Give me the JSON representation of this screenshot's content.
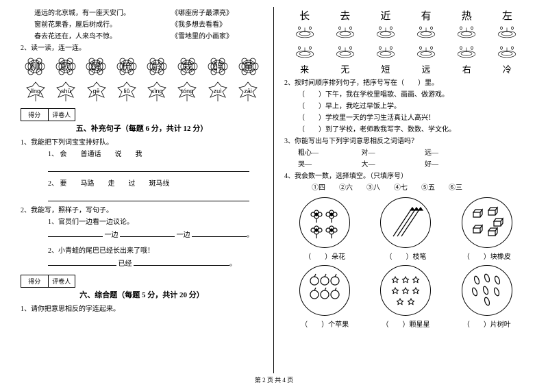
{
  "left": {
    "pairs": [
      {
        "l": "遥远的北京城，有一座天安门。",
        "r": "《哪座房子最漂亮》"
      },
      {
        "l": "窗前花果香，屋后树成行。",
        "r": "《我多想去看看》"
      },
      {
        "l": "春去花还在，人来鸟不惊。",
        "r": "《雪地里的小画家》"
      }
    ],
    "q2_label": "2、读一读，连一连。",
    "flowers": [
      "柳",
      "歌",
      "醒",
      "梳",
      "龄",
      "栽",
      "醉",
      "童"
    ],
    "leaves": [
      "lǐng",
      "shū",
      "gē",
      "liǔ",
      "xǐng",
      "tóng",
      "zuì",
      "zāi"
    ],
    "score": {
      "left": "得分",
      "right": "评卷人"
    },
    "section5": "五、补充句子（每题 6 分，共计 12 分）",
    "q5_1": "1、我能把下列词宝宝排好队。",
    "q5_1_1_words": [
      "会",
      "普通话",
      "说",
      "我"
    ],
    "q5_1_1_num": "1、",
    "q5_1_2_words": [
      "要",
      "马路",
      "走",
      "过",
      "斑马线"
    ],
    "q5_1_2_num": "2、",
    "q5_2": "2、我能写，照样子，写句子。",
    "q5_2_1": "1、官员们一边看一边议论。",
    "q5_2_1_fill_a": "一边",
    "q5_2_1_fill_b": "一边",
    "q5_2_2": "2、小青蛙的尾巴已经长出来了哦！",
    "q5_2_2_fill": "已经",
    "section6": "六、综合题（每题 5 分，共计 20 分）",
    "q6_1": "1、请你把意思相反的字连起来。"
  },
  "right": {
    "dish_top": [
      "长",
      "去",
      "近",
      "有",
      "热",
      "左"
    ],
    "dish_bot": [
      "来",
      "无",
      "短",
      "远",
      "右",
      "冷"
    ],
    "q2": "2、按时间顺序排列句子，把序号写在（　　）里。",
    "q2_lines": [
      "（　　）下午，我在学校里唱歌、画画、做游戏。",
      "（　　）早上，我吃过早饭上学。",
      "（　　）学校里一天的学习生活真让人高兴！",
      "（　　）到了学校，老师教我写字、数数、学文化。"
    ],
    "q3": "3、你能写出与下列字词意思相反之词语吗？",
    "q3_pairs": [
      {
        "a": "粗心—",
        "b": "对—",
        "c": "远—"
      },
      {
        "a": "哭—",
        "b": "大—",
        "c": "好—"
      }
    ],
    "q4": "4、我会数一数，选择填空。（只填序号）",
    "q4_options": "①四　　②六　　③八　　④七　　⑤五　　⑥三",
    "counts1": [
      {
        "label": "）朵花"
      },
      {
        "label": "）枝笔"
      },
      {
        "label": "）块橡皮"
      }
    ],
    "counts2": [
      {
        "label": "）个苹果"
      },
      {
        "label": "）颗星星"
      },
      {
        "label": "）片树叶"
      }
    ],
    "bracket": "（　　"
  },
  "footer": "第 2 页 共 4 页",
  "colors": {
    "stroke": "#000000",
    "bg": "#ffffff"
  }
}
